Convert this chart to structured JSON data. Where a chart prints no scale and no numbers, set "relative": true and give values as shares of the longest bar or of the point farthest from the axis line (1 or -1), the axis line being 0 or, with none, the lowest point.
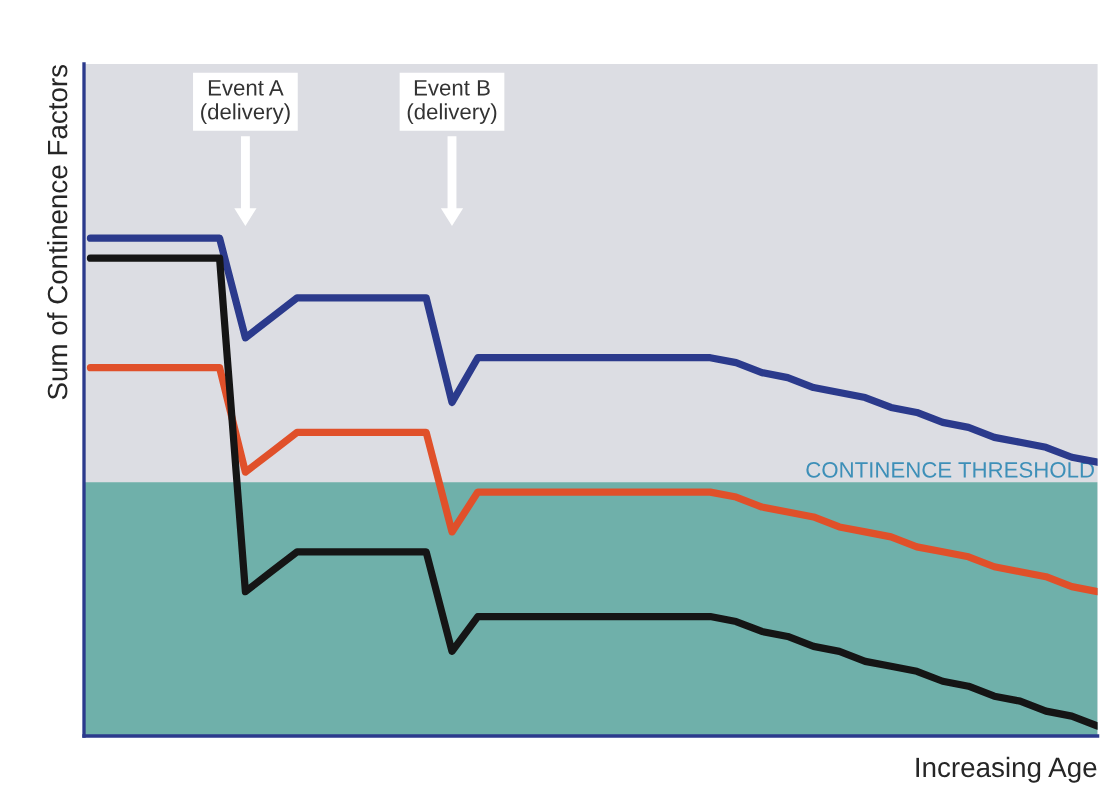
{
  "chart_data": {
    "type": "line",
    "relative": true,
    "xlabel": "Increasing Age",
    "ylabel": "Sum of Continence Factors",
    "legend": false,
    "marker": "none",
    "line_style": "solid",
    "categories": [
      null,
      null,
      null,
      null,
      null,
      null,
      null,
      null,
      null,
      null,
      null,
      null,
      null,
      null,
      null,
      null,
      null,
      null,
      null,
      null,
      null,
      null,
      null,
      null,
      null,
      null,
      null,
      null,
      null,
      null,
      null,
      null,
      null,
      null,
      null,
      null,
      null,
      null,
      null,
      null
    ],
    "series": [
      {
        "color": "#2b3a8c",
        "values": [
          1,
          1,
          1,
          1,
          1,
          1,
          0.8,
          0.84,
          0.88,
          0.88,
          0.88,
          0.88,
          0.88,
          0.88,
          0.67,
          0.76,
          0.76,
          0.76,
          0.76,
          0.76,
          0.76,
          0.76,
          0.76,
          0.76,
          0.76,
          0.75,
          0.73,
          0.72,
          0.7,
          0.69,
          0.68,
          0.66,
          0.65,
          0.63,
          0.62,
          0.6,
          0.59,
          0.58,
          0.56,
          0.55
        ]
      },
      {
        "color": "#e0502a",
        "values": [
          0.74,
          0.74,
          0.74,
          0.74,
          0.74,
          0.74,
          0.53,
          0.57,
          0.61,
          0.61,
          0.61,
          0.61,
          0.61,
          0.61,
          0.41,
          0.49,
          0.49,
          0.49,
          0.49,
          0.49,
          0.49,
          0.49,
          0.49,
          0.49,
          0.49,
          0.48,
          0.46,
          0.45,
          0.44,
          0.42,
          0.41,
          0.4,
          0.38,
          0.37,
          0.36,
          0.34,
          0.33,
          0.32,
          0.3,
          0.29
        ]
      },
      {
        "color": "#151515",
        "values": [
          0.96,
          0.96,
          0.96,
          0.96,
          0.96,
          0.96,
          0.29,
          0.33,
          0.37,
          0.37,
          0.37,
          0.37,
          0.37,
          0.37,
          0.17,
          0.24,
          0.24,
          0.24,
          0.24,
          0.24,
          0.24,
          0.24,
          0.24,
          0.24,
          0.24,
          0.23,
          0.21,
          0.2,
          0.18,
          0.17,
          0.15,
          0.14,
          0.13,
          0.11,
          0.1,
          0.08,
          0.07,
          0.05,
          0.04,
          0.02
        ]
      }
    ],
    "bands": [
      {
        "axis": "y",
        "from": 0,
        "to": 0.51,
        "label": "CONTINENCE THRESHOLD",
        "color": "#6fb0aa"
      }
    ],
    "annotations": [
      "Event A\n(delivery)",
      "Event B\n(delivery)"
    ]
  }
}
